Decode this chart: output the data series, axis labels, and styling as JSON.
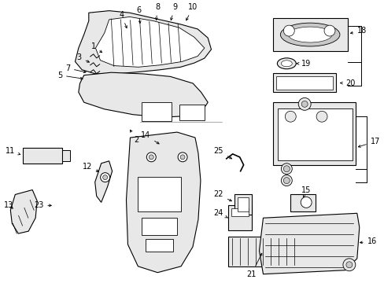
{
  "background_color": "#ffffff",
  "line_color": "#000000",
  "figure_width": 4.89,
  "figure_height": 3.6,
  "dpi": 100,
  "label_fontsize": 7.0,
  "gray_fill": "#e8e8e8",
  "dark_gray": "#c8c8c8",
  "white_fill": "#ffffff"
}
